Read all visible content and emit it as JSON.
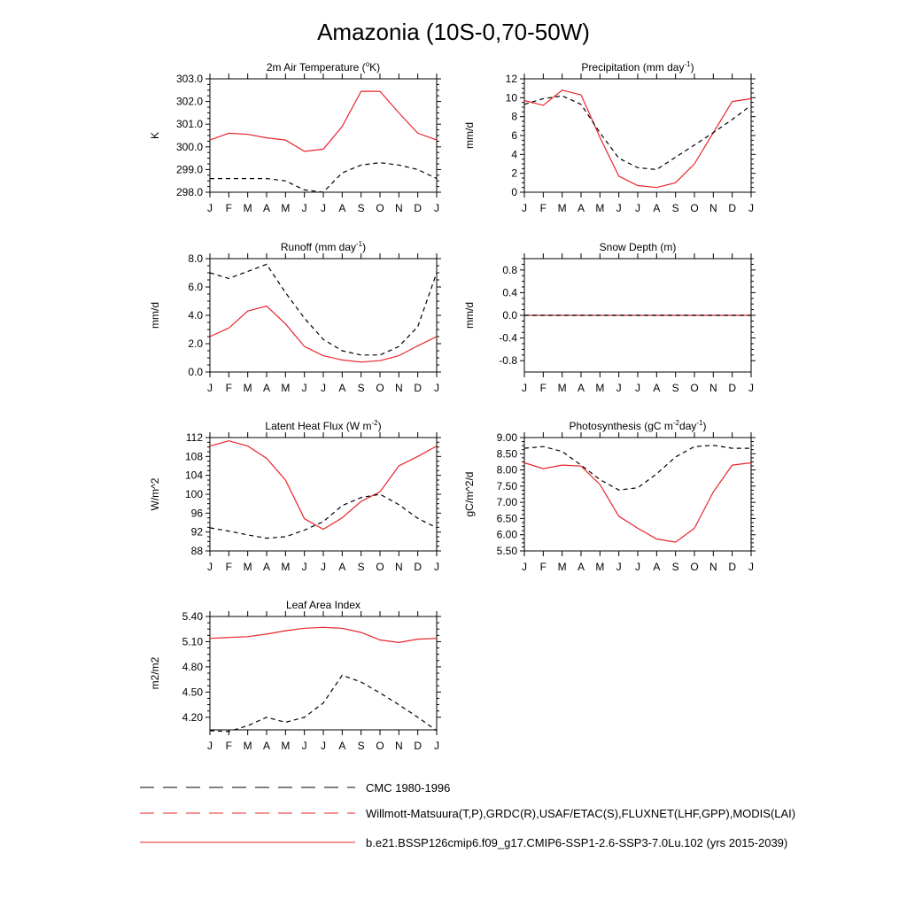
{
  "figure": {
    "title": "Amazonia (10S-0,70-50W)",
    "month_labels": [
      "J",
      "F",
      "M",
      "A",
      "M",
      "J",
      "J",
      "A",
      "S",
      "O",
      "N",
      "D",
      "J"
    ]
  },
  "colors": {
    "model": "#e8242a",
    "obs": "#000000",
    "axis": "#000000"
  },
  "legend": {
    "items": [
      {
        "label": "CMC 1980-1996",
        "style": "dashed-black"
      },
      {
        "label": "Willmott-Matsuura(T,P),GRDC(R),USAF/ETAC(S),FLUXNET(LHF,GPP),MODIS(LAI)",
        "style": "dashed-red-blue"
      },
      {
        "label": "b.e21.BSSP126cmip6.f09_g17.CMIP6-SSP1-2.6-SSP3-7.0Lu.102 (yrs 2015-2039)",
        "style": "solid-red"
      }
    ]
  },
  "chart_data": [
    {
      "type": "line",
      "title": "2m Air Temperature (°K)",
      "title_parts": [
        "2m Air Temperature (",
        "o",
        "K)"
      ],
      "ylabel": "K",
      "ylim": [
        298.0,
        303.0
      ],
      "yticks": [
        298.0,
        299.0,
        300.0,
        301.0,
        302.0,
        303.0
      ],
      "yticklabels": [
        "298.0",
        "299.0",
        "300.0",
        "301.0",
        "302.0",
        "303.0"
      ],
      "x": [
        "J",
        "F",
        "M",
        "A",
        "M",
        "J",
        "J",
        "A",
        "S",
        "O",
        "N",
        "D",
        "J"
      ],
      "series": [
        {
          "values": [
            300.3,
            300.6,
            300.55,
            300.4,
            300.3,
            299.8,
            299.9,
            300.9,
            302.45,
            302.45,
            301.5,
            300.6,
            300.3
          ]
        },
        {
          "values": [
            298.6,
            298.6,
            298.6,
            298.6,
            298.5,
            298.1,
            298.0,
            298.85,
            299.2,
            299.3,
            299.2,
            299.0,
            298.6
          ]
        }
      ]
    },
    {
      "type": "line",
      "title": "Precipitation (mm day-1)",
      "title_parts": [
        "Precipitation (mm day",
        "-1",
        ")"
      ],
      "ylabel": "mm/d",
      "ylim": [
        0,
        12
      ],
      "yticks": [
        0,
        2,
        4,
        6,
        8,
        10,
        12
      ],
      "yticklabels": [
        "0",
        "2",
        "4",
        "6",
        "8",
        "10",
        "12"
      ],
      "x": [
        "J",
        "F",
        "M",
        "A",
        "M",
        "J",
        "J",
        "A",
        "S",
        "O",
        "N",
        "D",
        "J"
      ],
      "series": [
        {
          "values": [
            9.7,
            9.2,
            10.8,
            10.3,
            5.8,
            1.7,
            0.7,
            0.5,
            1.0,
            3.0,
            6.3,
            9.6,
            9.9
          ]
        },
        {
          "values": [
            9.3,
            9.9,
            10.2,
            9.3,
            6.3,
            3.6,
            2.6,
            2.4,
            3.7,
            5.0,
            6.3,
            7.7,
            9.2
          ]
        }
      ]
    },
    {
      "type": "line",
      "title": "Runoff (mm day-1)",
      "title_parts": [
        "Runoff (mm day",
        "-1",
        ")"
      ],
      "ylabel": "mm/d",
      "ylim": [
        0.0,
        8.0
      ],
      "yticks": [
        0.0,
        2.0,
        4.0,
        6.0,
        8.0
      ],
      "yticklabels": [
        "0.0",
        "2.0",
        "4.0",
        "6.0",
        "8.0"
      ],
      "x": [
        "J",
        "F",
        "M",
        "A",
        "M",
        "J",
        "J",
        "A",
        "S",
        "O",
        "N",
        "D",
        "J"
      ],
      "series": [
        {
          "values": [
            2.5,
            3.1,
            4.3,
            4.65,
            3.4,
            1.8,
            1.15,
            0.85,
            0.7,
            0.8,
            1.15,
            1.85,
            2.5
          ]
        },
        {
          "values": [
            7.0,
            6.6,
            7.1,
            7.6,
            5.6,
            3.8,
            2.3,
            1.5,
            1.2,
            1.2,
            1.8,
            3.2,
            7.0
          ]
        }
      ]
    },
    {
      "type": "line",
      "title": "Snow Depth (m)",
      "title_parts": [
        "Snow Depth (m)"
      ],
      "ylabel": "mm/d",
      "ylim": [
        -1.0,
        1.0
      ],
      "yticks": [
        -0.8,
        -0.4,
        0.0,
        0.4,
        0.8
      ],
      "yticklabels": [
        "-0.8",
        "-0.4",
        "0.0",
        "0.4",
        "0.8"
      ],
      "x": [
        "J",
        "F",
        "M",
        "A",
        "M",
        "J",
        "J",
        "A",
        "S",
        "O",
        "N",
        "D",
        "J"
      ],
      "series": [
        {
          "values": [
            0,
            0,
            0,
            0,
            0,
            0,
            0,
            0,
            0,
            0,
            0,
            0,
            0
          ]
        },
        {
          "values": [
            0,
            0,
            0,
            0,
            0,
            0,
            0,
            0,
            0,
            0,
            0,
            0,
            0
          ]
        }
      ]
    },
    {
      "type": "line",
      "title": "Latent Heat Flux (W m-2)",
      "title_parts": [
        "Latent Heat Flux (W m",
        "-2",
        ")"
      ],
      "ylabel": "W/m^2",
      "ylim": [
        88,
        112
      ],
      "yticks": [
        88,
        92,
        96,
        100,
        104,
        108,
        112
      ],
      "yticklabels": [
        "88",
        "92",
        "96",
        "100",
        "104",
        "108",
        "112"
      ],
      "x": [
        "J",
        "F",
        "M",
        "A",
        "M",
        "J",
        "J",
        "A",
        "S",
        "O",
        "N",
        "D",
        "J"
      ],
      "series": [
        {
          "values": [
            110.2,
            111.3,
            110.2,
            107.6,
            103.0,
            94.8,
            92.6,
            95.0,
            98.5,
            100.5,
            106.0,
            108.0,
            110.2
          ]
        },
        {
          "values": [
            92.9,
            92.2,
            91.4,
            90.7,
            91.0,
            92.4,
            94.2,
            97.6,
            99.3,
            100.0,
            97.8,
            94.9,
            92.9
          ]
        }
      ]
    },
    {
      "type": "line",
      "title": "Photosynthesis (gC m-2day-1)",
      "title_parts": [
        "Photosynthesis (gC m",
        "-2",
        "day",
        "-1",
        ")"
      ],
      "ylabel": "gC/m^2/d",
      "ylim": [
        5.5,
        9.0
      ],
      "yticks": [
        5.5,
        6.0,
        6.5,
        7.0,
        7.5,
        8.0,
        8.5,
        9.0
      ],
      "yticklabels": [
        "5.50",
        "6.00",
        "6.50",
        "7.00",
        "7.50",
        "8.00",
        "8.50",
        "9.00"
      ],
      "x": [
        "J",
        "F",
        "M",
        "A",
        "M",
        "J",
        "J",
        "A",
        "S",
        "O",
        "N",
        "D",
        "J"
      ],
      "series": [
        {
          "values": [
            8.22,
            8.04,
            8.15,
            8.12,
            7.55,
            6.57,
            6.2,
            5.87,
            5.77,
            6.2,
            7.32,
            8.15,
            8.22
          ]
        },
        {
          "values": [
            8.67,
            8.72,
            8.57,
            8.15,
            7.7,
            7.38,
            7.45,
            7.88,
            8.4,
            8.72,
            8.76,
            8.67,
            8.67
          ]
        }
      ]
    },
    {
      "type": "line",
      "title": "Leaf Area Index",
      "title_parts": [
        "Leaf Area Index"
      ],
      "ylabel": "m2/m2",
      "ylim": [
        4.05,
        5.4
      ],
      "yticks": [
        4.2,
        4.5,
        4.8,
        5.1,
        5.4
      ],
      "yticklabels": [
        "4.20",
        "4.50",
        "4.80",
        "5.10",
        "5.40"
      ],
      "x": [
        "J",
        "F",
        "M",
        "A",
        "M",
        "J",
        "J",
        "A",
        "S",
        "O",
        "N",
        "D",
        "J"
      ],
      "series": [
        {
          "values": [
            5.14,
            5.15,
            5.16,
            5.19,
            5.23,
            5.26,
            5.27,
            5.26,
            5.21,
            5.12,
            5.09,
            5.13,
            5.14
          ]
        },
        {
          "values": [
            4.04,
            4.03,
            4.1,
            4.2,
            4.14,
            4.2,
            4.37,
            4.7,
            4.62,
            4.49,
            4.35,
            4.2,
            4.04
          ]
        }
      ]
    }
  ]
}
